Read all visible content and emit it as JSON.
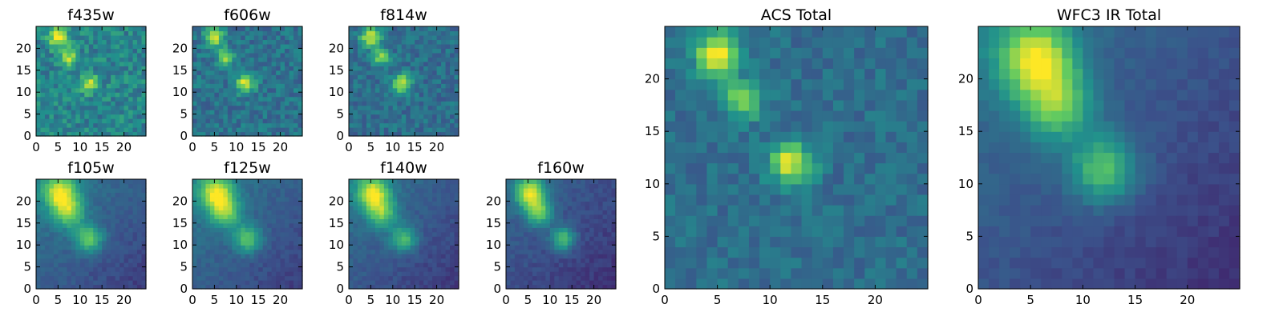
{
  "chart_data": {
    "type": "heatmap",
    "colormap": "viridis",
    "colormap_stops": [
      "#440154",
      "#3b528b",
      "#21918c",
      "#5ec962",
      "#fde725"
    ],
    "grid_size": 25,
    "axis_range": [
      0,
      25
    ],
    "panels": [
      {
        "title": "f435w",
        "size": "small",
        "xticks": [
          "0",
          "5",
          "10",
          "15",
          "20"
        ],
        "yticks": [
          "0",
          "5",
          "10",
          "15",
          "20"
        ],
        "background_level": 0.45,
        "noise_level": 0.26,
        "features": [
          {
            "x": 5,
            "y": 22.5,
            "sigma": 1.6,
            "amp": 0.55
          },
          {
            "x": 7.5,
            "y": 18,
            "sigma": 1.3,
            "amp": 0.4
          },
          {
            "x": 12,
            "y": 12,
            "sigma": 1.5,
            "amp": 0.45
          }
        ],
        "gradient": 0.0
      },
      {
        "title": "f606w",
        "size": "small",
        "xticks": [
          "0",
          "5",
          "10",
          "15",
          "20"
        ],
        "yticks": [
          "0",
          "5",
          "10",
          "15",
          "20"
        ],
        "background_level": 0.38,
        "noise_level": 0.22,
        "features": [
          {
            "x": 5,
            "y": 22.5,
            "sigma": 1.5,
            "amp": 0.55
          },
          {
            "x": 7.5,
            "y": 18,
            "sigma": 1.3,
            "amp": 0.42
          },
          {
            "x": 12,
            "y": 12,
            "sigma": 1.5,
            "amp": 0.55
          }
        ],
        "gradient": 0.0
      },
      {
        "title": "f814w",
        "size": "small",
        "xticks": [
          "0",
          "5",
          "10",
          "15",
          "20"
        ],
        "yticks": [
          "0",
          "5",
          "10",
          "15",
          "20"
        ],
        "background_level": 0.36,
        "noise_level": 0.2,
        "features": [
          {
            "x": 5,
            "y": 22.5,
            "sigma": 1.6,
            "amp": 0.6
          },
          {
            "x": 7.5,
            "y": 18,
            "sigma": 1.3,
            "amp": 0.48
          },
          {
            "x": 12,
            "y": 12,
            "sigma": 1.5,
            "amp": 0.58
          }
        ],
        "gradient": 0.0
      },
      {
        "title": "f105w",
        "size": "small",
        "xticks": [
          "0",
          "5",
          "10",
          "15",
          "20"
        ],
        "yticks": [
          "0",
          "5",
          "10",
          "15",
          "20"
        ],
        "background_level": 0.3,
        "noise_level": 0.08,
        "features": [
          {
            "x": 5.5,
            "y": 22,
            "sigma": 2.6,
            "amp": 0.62
          },
          {
            "x": 7.5,
            "y": 17.5,
            "sigma": 2.4,
            "amp": 0.45
          },
          {
            "x": 12,
            "y": 11.5,
            "sigma": 2.2,
            "amp": 0.45
          }
        ],
        "gradient": 0.12
      },
      {
        "title": "f125w",
        "size": "small",
        "xticks": [
          "0",
          "5",
          "10",
          "15",
          "20"
        ],
        "yticks": [
          "0",
          "5",
          "10",
          "15",
          "20"
        ],
        "background_level": 0.3,
        "noise_level": 0.08,
        "features": [
          {
            "x": 5.5,
            "y": 22,
            "sigma": 2.6,
            "amp": 0.62
          },
          {
            "x": 7.5,
            "y": 17.5,
            "sigma": 2.4,
            "amp": 0.45
          },
          {
            "x": 12.5,
            "y": 11.5,
            "sigma": 2.2,
            "amp": 0.42
          }
        ],
        "gradient": 0.12
      },
      {
        "title": "f140w",
        "size": "small",
        "xticks": [
          "0",
          "5",
          "10",
          "15",
          "20"
        ],
        "yticks": [
          "0",
          "5",
          "10",
          "15",
          "20"
        ],
        "background_level": 0.28,
        "noise_level": 0.08,
        "features": [
          {
            "x": 5.5,
            "y": 22,
            "sigma": 2.5,
            "amp": 0.62
          },
          {
            "x": 7.5,
            "y": 17.5,
            "sigma": 2.3,
            "amp": 0.45
          },
          {
            "x": 12.5,
            "y": 11.5,
            "sigma": 2.1,
            "amp": 0.4
          }
        ],
        "gradient": 0.12
      },
      {
        "title": "f160w",
        "size": "small",
        "xticks": [
          "0",
          "5",
          "10",
          "15",
          "20"
        ],
        "yticks": [
          "0",
          "5",
          "10",
          "15",
          "20"
        ],
        "background_level": 0.24,
        "noise_level": 0.08,
        "features": [
          {
            "x": 5.5,
            "y": 22,
            "sigma": 2.3,
            "amp": 0.68
          },
          {
            "x": 7.5,
            "y": 17.5,
            "sigma": 2.1,
            "amp": 0.48
          },
          {
            "x": 13,
            "y": 11.5,
            "sigma": 1.9,
            "amp": 0.45
          }
        ],
        "gradient": 0.1
      },
      {
        "title": "ACS Total",
        "size": "large",
        "xticks": [
          "0",
          "5",
          "10",
          "15",
          "20"
        ],
        "yticks": [
          "0",
          "5",
          "10",
          "15",
          "20"
        ],
        "background_level": 0.36,
        "noise_level": 0.16,
        "features": [
          {
            "x": 5,
            "y": 22.5,
            "sigma": 1.5,
            "amp": 0.62
          },
          {
            "x": 7.5,
            "y": 18,
            "sigma": 1.2,
            "amp": 0.5
          },
          {
            "x": 12,
            "y": 12,
            "sigma": 1.4,
            "amp": 0.6
          }
        ],
        "gradient": 0.0
      },
      {
        "title": "WFC3 IR Total",
        "size": "large",
        "xticks": [
          "0",
          "5",
          "10",
          "15",
          "20"
        ],
        "yticks": [
          "0",
          "5",
          "10",
          "15",
          "20"
        ],
        "background_level": 0.26,
        "noise_level": 0.06,
        "features": [
          {
            "x": 5.5,
            "y": 22,
            "sigma": 2.5,
            "amp": 0.66
          },
          {
            "x": 7.5,
            "y": 17.5,
            "sigma": 2.3,
            "amp": 0.46
          },
          {
            "x": 12,
            "y": 11.5,
            "sigma": 2.2,
            "amp": 0.45
          }
        ],
        "gradient": 0.12
      }
    ]
  }
}
